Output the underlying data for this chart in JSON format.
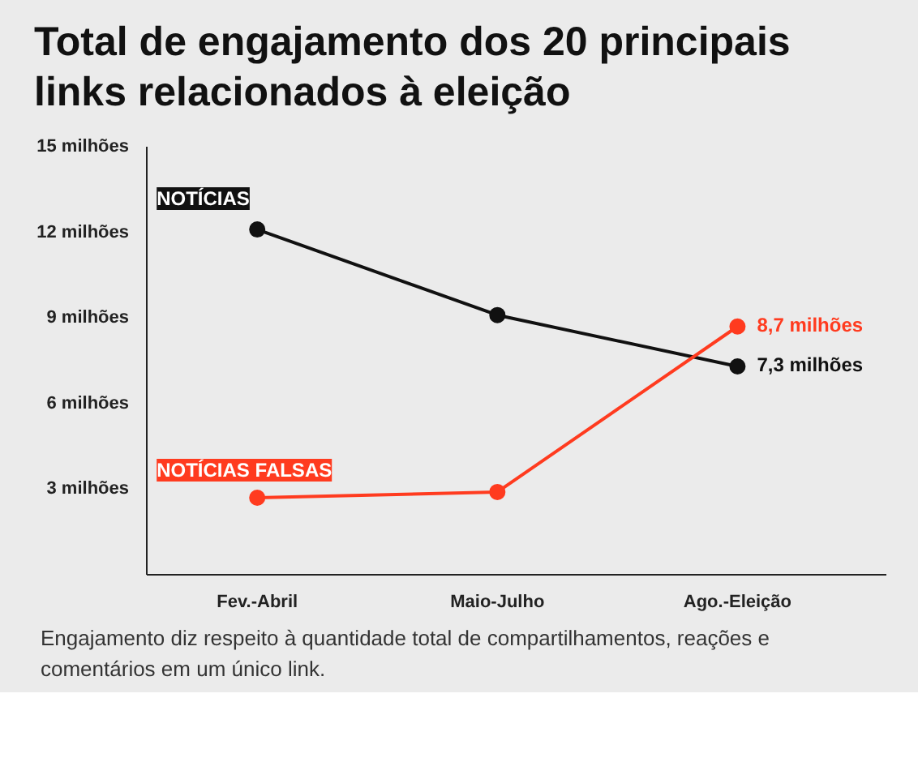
{
  "chart_data": {
    "type": "line",
    "title": "Total de engajamento dos 20 principais links relacionados à eleição",
    "categories": [
      "Fev.-Abril",
      "Maio-Julho",
      "Ago.-Eleição"
    ],
    "series": [
      {
        "name": "NOTÍCIAS",
        "color": "#111111",
        "values": [
          12.1,
          9.1,
          7.3
        ],
        "value_labels": [
          null,
          null,
          "7,3 milhões"
        ]
      },
      {
        "name": "NOTÍCIAS FALSAS",
        "color": "#ff3b1f",
        "values": [
          2.7,
          2.9,
          8.7
        ],
        "value_labels": [
          null,
          null,
          "8,7 milhões"
        ]
      }
    ],
    "ylim": [
      0,
      15
    ],
    "yticks": [
      {
        "value": 3,
        "label": "3 milhões"
      },
      {
        "value": 6,
        "label": "6 milhões"
      },
      {
        "value": 9,
        "label": "9 milhões"
      },
      {
        "value": 12,
        "label": "12 milhões"
      },
      {
        "value": 15,
        "label": "15 milhões"
      }
    ],
    "marker": "circle",
    "line_style": "solid",
    "grid": false,
    "annotations": [
      "Engajamento diz respeito à quantidade total de compartilhamentos, reações e comentários em um único link."
    ]
  }
}
